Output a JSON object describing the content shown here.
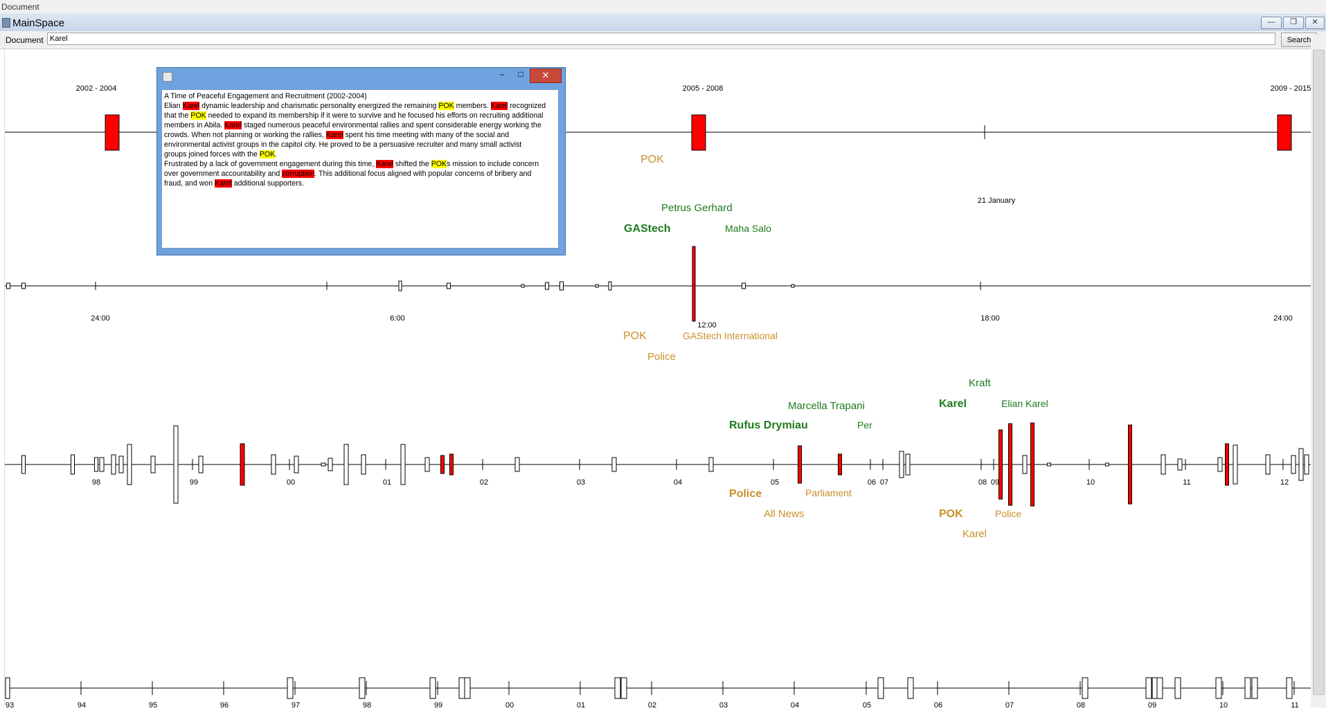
{
  "outer_title": "Document",
  "window": {
    "title": "MainSpace",
    "controls": {
      "minimize": "—",
      "restore": "❐",
      "close": "✕"
    }
  },
  "toolbar": {
    "document_label": "Document",
    "query": "Karel",
    "search_label": "Search"
  },
  "colors": {
    "event": "#ff0000",
    "person": "#1e7a1e",
    "org": "#c8902a",
    "keyword_hl": "#ff0000",
    "entity_hl": "#ffff00"
  },
  "timeline1": {
    "periods": [
      "2002 - 2004",
      "2005 - 2008",
      "2009 - 2015"
    ],
    "entities": [
      {
        "text": "POK",
        "type": "org"
      },
      {
        "text": "Petrus Gerhard",
        "type": "person"
      },
      {
        "text": "GAStech",
        "type": "person"
      },
      {
        "text": "Maha Salo",
        "type": "person"
      }
    ],
    "date_label": "21 January"
  },
  "timeline2": {
    "ticks": [
      "24:00",
      "6:00",
      "12:00",
      "18:00",
      "24:00"
    ],
    "entities": [
      {
        "text": "POK",
        "type": "org"
      },
      {
        "text": "GAStech International",
        "type": "org"
      },
      {
        "text": "Police",
        "type": "org"
      }
    ]
  },
  "timeline3": {
    "ticks": [
      "98",
      "99",
      "00",
      "01",
      "02",
      "03",
      "04",
      "05",
      "06",
      "07",
      "08",
      "09",
      "10",
      "11",
      "12"
    ],
    "entities": [
      {
        "text": "Kraft",
        "type": "person"
      },
      {
        "text": "Marcella Trapani",
        "type": "person"
      },
      {
        "text": "Karel",
        "type": "person"
      },
      {
        "text": "Elian Karel",
        "type": "person"
      },
      {
        "text": "Rufus Drymiau",
        "type": "person"
      },
      {
        "text": "Per",
        "type": "person"
      },
      {
        "text": "Police",
        "type": "org"
      },
      {
        "text": "Parliament",
        "type": "org"
      },
      {
        "text": "All News",
        "type": "org"
      },
      {
        "text": "POK",
        "type": "org"
      },
      {
        "text": "Police",
        "type": "org"
      },
      {
        "text": "Karel",
        "type": "org"
      }
    ]
  },
  "timeline4": {
    "ticks": [
      "93",
      "94",
      "95",
      "96",
      "97",
      "98",
      "99",
      "00",
      "01",
      "02",
      "03",
      "04",
      "05",
      "06",
      "07",
      "08",
      "09",
      "10",
      "11"
    ]
  },
  "popup": {
    "controls": {
      "minimize": "–",
      "maximize": "□",
      "close": "✕"
    },
    "heading": "A Time of Peaceful Engagement and Recruitment (2002-2004)",
    "lines": [
      [
        {
          "t": "Elian "
        },
        {
          "t": "Karel",
          "h": "k"
        },
        {
          "t": " dynamic leadership and charismatic personality energized the remaining "
        },
        {
          "t": "POK",
          "h": "p"
        },
        {
          "t": " members.  "
        },
        {
          "t": "Karel",
          "h": "k"
        },
        {
          "t": " recognized"
        }
      ],
      [
        {
          "t": "that the "
        },
        {
          "t": "POK",
          "h": "p"
        },
        {
          "t": " needed to expand its membership if it were to survive and he focused his efforts on recruiting additional"
        }
      ],
      [
        {
          "t": "members in Abila.  "
        },
        {
          "t": "Karel",
          "h": "k"
        },
        {
          "t": " staged numerous peaceful environmental rallies and spent considerable energy working the"
        }
      ],
      [
        {
          "t": "crowds.  When not planning or working the rallies, "
        },
        {
          "t": "Karel",
          "h": "k"
        },
        {
          "t": " spent his time meeting with many of the social and"
        }
      ],
      [
        {
          "t": "environmental activist groups in the capitol city.  He proved to be a persuasive recruiter and many small activist"
        }
      ],
      [
        {
          "t": "groups joined forces with the "
        },
        {
          "t": "POK",
          "h": "p"
        },
        {
          "t": "."
        }
      ],
      [
        {
          "t": "Frustrated by a lack of government engagement during this time, "
        },
        {
          "t": "Karel",
          "h": "k"
        },
        {
          "t": " shifted the "
        },
        {
          "t": "POK",
          "h": "p"
        },
        {
          "t": "s mission to include concern"
        }
      ],
      [
        {
          "t": "over government accountability and "
        },
        {
          "t": "corruption",
          "h": "k"
        },
        {
          "t": ".  This additional focus aligned with popular concerns of bribery and"
        }
      ],
      [
        {
          "t": "fraud, and won "
        },
        {
          "t": "Karel",
          "h": "k"
        },
        {
          "t": " additional supporters."
        }
      ]
    ]
  }
}
